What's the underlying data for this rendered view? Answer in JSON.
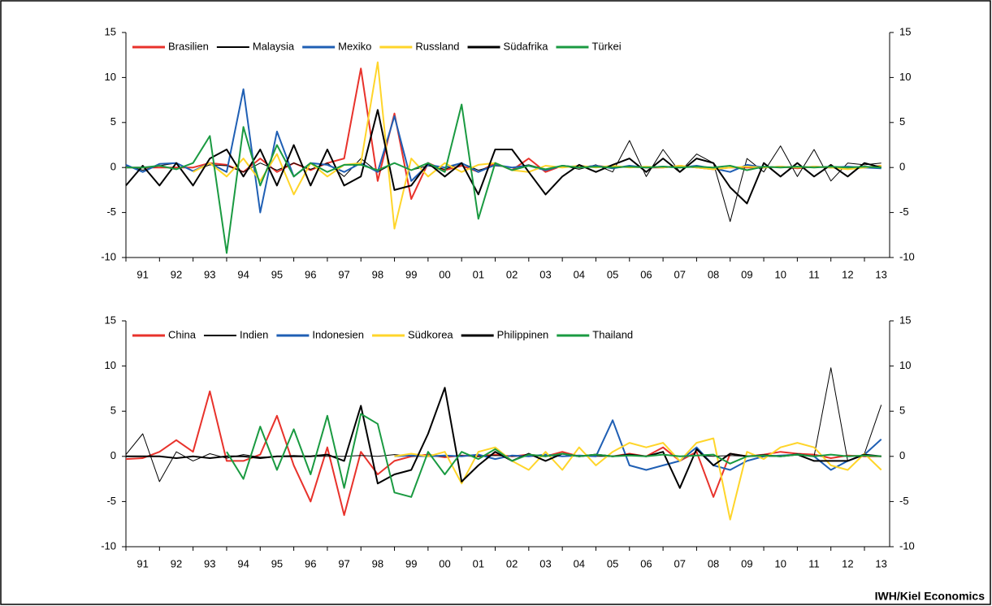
{
  "source": "IWH/Kiel Economics",
  "chart_data": [
    {
      "type": "line",
      "x": [
        1991.0,
        1991.5,
        1992.0,
        1992.5,
        1993.0,
        1993.5,
        1994.0,
        1994.5,
        1995.0,
        1995.5,
        1996.0,
        1996.5,
        1997.0,
        1997.5,
        1998.0,
        1998.5,
        1999.0,
        1999.5,
        2000.0,
        2000.5,
        2001.0,
        2001.5,
        2002.0,
        2002.5,
        2003.0,
        2003.5,
        2004.0,
        2004.5,
        2005.0,
        2005.5,
        2006.0,
        2006.5,
        2007.0,
        2007.5,
        2008.0,
        2008.5,
        2009.0,
        2009.5,
        2010.0,
        2010.5,
        2011.0,
        2011.5,
        2012.0,
        2012.5,
        2013.0,
        2013.5
      ],
      "xlim": [
        1991,
        2013.75
      ],
      "xticks": [
        {
          "value": 1991,
          "label": "91"
        },
        {
          "value": 1992,
          "label": "92"
        },
        {
          "value": 1993,
          "label": "93"
        },
        {
          "value": 1994,
          "label": "94"
        },
        {
          "value": 1995,
          "label": "95"
        },
        {
          "value": 1996,
          "label": "96"
        },
        {
          "value": 1997,
          "label": "97"
        },
        {
          "value": 1998,
          "label": "98"
        },
        {
          "value": 1999,
          "label": "99"
        },
        {
          "value": 2000,
          "label": "00"
        },
        {
          "value": 2001,
          "label": "01"
        },
        {
          "value": 2002,
          "label": "02"
        },
        {
          "value": 2003,
          "label": "03"
        },
        {
          "value": 2004,
          "label": "04"
        },
        {
          "value": 2005,
          "label": "05"
        },
        {
          "value": 2006,
          "label": "06"
        },
        {
          "value": 2007,
          "label": "07"
        },
        {
          "value": 2008,
          "label": "08"
        },
        {
          "value": 2009,
          "label": "09"
        },
        {
          "value": 2010,
          "label": "10"
        },
        {
          "value": 2011,
          "label": "11"
        },
        {
          "value": 2012,
          "label": "12"
        },
        {
          "value": 2013,
          "label": "13"
        }
      ],
      "ylim": [
        -10,
        15
      ],
      "yticks": [
        -10,
        -5,
        0,
        5,
        10,
        15
      ],
      "y2lim": [
        -10,
        15
      ],
      "y2ticks": [
        -10,
        -5,
        0,
        5,
        10,
        15
      ],
      "series": [
        {
          "name": "Brasilien",
          "color": "#e8322b",
          "width": 2,
          "values": [
            0,
            0,
            0,
            0,
            0,
            0.5,
            0.3,
            -0.5,
            1,
            -0.5,
            0.5,
            -0.3,
            0.5,
            1,
            11,
            -1.5,
            6,
            -3.5,
            0.5,
            -0.3,
            0.2,
            -0.5,
            0.5,
            -0.3,
            1,
            -0.5,
            0.2,
            0,
            0.2,
            0,
            0.1,
            0,
            0,
            0.2,
            0,
            -0.2,
            0,
            0,
            0,
            0.1,
            -0.1,
            0.1,
            0,
            0,
            0,
            0.2
          ]
        },
        {
          "name": "Malaysia",
          "color": "#000000",
          "width": 1,
          "values": [
            0.2,
            -0.3,
            0.2,
            0.5,
            -0.4,
            0.3,
            0.2,
            -0.5,
            0.5,
            -0.3,
            0.5,
            -0.2,
            0.5,
            -1,
            1,
            -0.5,
            0.5,
            -0.3,
            0.2,
            -0.2,
            0.5,
            -0.3,
            0.2,
            0,
            0.3,
            -0.2,
            0.2,
            -0.2,
            0.3,
            -0.5,
            3,
            -1,
            2,
            -0.5,
            1.5,
            0.5,
            -6,
            1,
            -0.5,
            2.4,
            -1,
            2,
            -1.5,
            0.5,
            0.3,
            0.5
          ]
        },
        {
          "name": "Mexiko",
          "color": "#1f5fb4",
          "width": 2,
          "values": [
            0.3,
            -0.5,
            0.4,
            0.5,
            -0.4,
            0.5,
            -0.5,
            8.7,
            -5,
            4,
            -1,
            0.5,
            0.3,
            -0.5,
            0.5,
            -0.5,
            5.7,
            -1.5,
            0.3,
            0,
            0.5,
            -0.5,
            0.3,
            0,
            0.2,
            -0.3,
            0.2,
            0,
            0.2,
            -0.1,
            0.2,
            0,
            0.1,
            0,
            0.2,
            -0.1,
            -0.5,
            0.3,
            0,
            0.1,
            0,
            0.1,
            0,
            0.1,
            0,
            -0.1
          ]
        },
        {
          "name": "Russland",
          "color": "#ffd52a",
          "width": 2,
          "values": [
            null,
            null,
            null,
            null,
            -0.5,
            0.5,
            -1,
            1,
            -1.5,
            1.5,
            -3,
            0.5,
            -1,
            0.3,
            0.5,
            11.7,
            -6.8,
            1,
            -1,
            0.5,
            -0.5,
            0.3,
            0.5,
            -0.3,
            -0.5,
            0.2,
            0,
            0.2,
            0,
            0.2,
            0,
            0.1,
            0,
            0.2,
            0,
            -0.2,
            0,
            0.1,
            0,
            0.1,
            0,
            0.1,
            0,
            -0.2,
            0,
            0.2
          ]
        },
        {
          "name": "Südafrika",
          "color": "#000000",
          "width": 2,
          "values": [
            -2,
            0.2,
            -2,
            0.5,
            -2,
            1,
            2,
            -1,
            2,
            -2,
            2.5,
            -2,
            2,
            -2,
            -1,
            6.4,
            -2.5,
            -2,
            0.5,
            -1,
            0.5,
            -3,
            2,
            2,
            -0.5,
            -3,
            -1,
            0.3,
            -0.5,
            0.3,
            1,
            -0.5,
            1,
            -0.5,
            1,
            0.5,
            -2.2,
            -4,
            0.5,
            -1,
            0.5,
            -1,
            0.3,
            -1,
            0.5,
            0
          ]
        },
        {
          "name": "Türkei",
          "color": "#1a9a41",
          "width": 2,
          "values": [
            0,
            0,
            0.2,
            -0.2,
            0.5,
            3.5,
            -9.5,
            4.5,
            -2,
            2.5,
            -1,
            0.5,
            -0.5,
            0.3,
            0.3,
            -0.3,
            0.5,
            -0.3,
            0.5,
            -0.5,
            7,
            -5.7,
            0.5,
            -0.3,
            0.2,
            -0.2,
            0.2,
            0,
            0.1,
            0,
            0.1,
            0,
            0.1,
            0,
            0.1,
            0,
            0.2,
            -0.3,
            0.1,
            0,
            0.1,
            0,
            0.1,
            0,
            0.1,
            0
          ]
        }
      ]
    },
    {
      "type": "line",
      "x": [
        1991.0,
        1991.5,
        1992.0,
        1992.5,
        1993.0,
        1993.5,
        1994.0,
        1994.5,
        1995.0,
        1995.5,
        1996.0,
        1996.5,
        1997.0,
        1997.5,
        1998.0,
        1998.5,
        1999.0,
        1999.5,
        2000.0,
        2000.5,
        2001.0,
        2001.5,
        2002.0,
        2002.5,
        2003.0,
        2003.5,
        2004.0,
        2004.5,
        2005.0,
        2005.5,
        2006.0,
        2006.5,
        2007.0,
        2007.5,
        2008.0,
        2008.5,
        2009.0,
        2009.5,
        2010.0,
        2010.5,
        2011.0,
        2011.5,
        2012.0,
        2012.5,
        2013.0,
        2013.5
      ],
      "xlim": [
        1991,
        2013.75
      ],
      "xticks": [
        {
          "value": 1991,
          "label": "91"
        },
        {
          "value": 1992,
          "label": "92"
        },
        {
          "value": 1993,
          "label": "93"
        },
        {
          "value": 1994,
          "label": "94"
        },
        {
          "value": 1995,
          "label": "95"
        },
        {
          "value": 1996,
          "label": "96"
        },
        {
          "value": 1997,
          "label": "97"
        },
        {
          "value": 1998,
          "label": "98"
        },
        {
          "value": 1999,
          "label": "99"
        },
        {
          "value": 2000,
          "label": "00"
        },
        {
          "value": 2001,
          "label": "01"
        },
        {
          "value": 2002,
          "label": "02"
        },
        {
          "value": 2003,
          "label": "03"
        },
        {
          "value": 2004,
          "label": "04"
        },
        {
          "value": 2005,
          "label": "05"
        },
        {
          "value": 2006,
          "label": "06"
        },
        {
          "value": 2007,
          "label": "07"
        },
        {
          "value": 2008,
          "label": "08"
        },
        {
          "value": 2009,
          "label": "09"
        },
        {
          "value": 2010,
          "label": "10"
        },
        {
          "value": 2011,
          "label": "11"
        },
        {
          "value": 2012,
          "label": "12"
        },
        {
          "value": 2013,
          "label": "13"
        }
      ],
      "ylim": [
        -10,
        15
      ],
      "yticks": [
        -10,
        -5,
        0,
        5,
        10,
        15
      ],
      "y2lim": [
        -10,
        15
      ],
      "y2ticks": [
        -10,
        -5,
        0,
        5,
        10,
        15
      ],
      "series": [
        {
          "name": "China",
          "color": "#e8322b",
          "width": 2,
          "values": [
            -0.3,
            -0.2,
            0.5,
            1.8,
            0.5,
            7.2,
            -0.5,
            -0.5,
            0.2,
            4.5,
            -1,
            -5,
            1,
            -6.5,
            0.5,
            -2,
            -0.5,
            0,
            0.2,
            -0.1,
            0.1,
            0,
            0.2,
            0,
            0.2,
            0,
            0.5,
            0,
            0.2,
            0,
            0.3,
            0,
            1,
            -0.5,
            0.5,
            -4.5,
            0.3,
            0,
            0.2,
            0.5,
            0.3,
            0.2,
            -0.2,
            0.1,
            0,
            0
          ]
        },
        {
          "name": "Indien",
          "color": "#000000",
          "width": 1,
          "values": [
            0.2,
            2.5,
            -2.8,
            0.5,
            -0.5,
            0.3,
            -0.2,
            0.2,
            -0.1,
            0,
            0.1,
            0,
            0,
            0,
            0.1,
            0,
            0.2,
            0,
            0,
            0,
            0.1,
            0,
            0.1,
            0,
            0,
            0.1,
            0,
            0.1,
            0,
            0,
            0.1,
            0,
            0.2,
            0,
            0.1,
            0,
            0.1,
            0,
            0.2,
            0,
            0.3,
            0,
            9.8,
            -0.5,
            0.3,
            5.7
          ]
        },
        {
          "name": "Indonesien",
          "color": "#1f5fb4",
          "width": 2,
          "values": [
            null,
            null,
            null,
            null,
            null,
            null,
            null,
            null,
            null,
            null,
            null,
            null,
            null,
            null,
            null,
            null,
            0,
            0.1,
            0,
            0.1,
            0,
            0.2,
            -0.3,
            0.1,
            0,
            0.2,
            0,
            0.1,
            0,
            4,
            -1,
            -1.5,
            -1,
            -0.5,
            1,
            -1,
            -1.5,
            -0.5,
            0,
            0.1,
            0.2,
            0,
            -1.5,
            -0.5,
            0.2,
            1.9
          ]
        },
        {
          "name": "Südkorea",
          "color": "#ffd52a",
          "width": 2,
          "values": [
            null,
            null,
            null,
            null,
            null,
            null,
            null,
            null,
            null,
            null,
            null,
            null,
            null,
            null,
            null,
            null,
            0,
            0.3,
            0,
            0.5,
            -3,
            0.5,
            1,
            -0.5,
            -1.5,
            0.5,
            -1.5,
            1,
            -1,
            0.5,
            1.5,
            1,
            1.5,
            -0.5,
            1.5,
            2,
            -7,
            0.5,
            -0.3,
            1,
            1.5,
            1,
            -1,
            -1.5,
            0.3,
            -1.5
          ]
        },
        {
          "name": "Philippinen",
          "color": "#000000",
          "width": 2,
          "values": [
            0,
            0,
            0,
            -0.2,
            0,
            -0.2,
            0,
            0,
            -0.2,
            0,
            0,
            0,
            0.2,
            -0.5,
            5.6,
            -3,
            -2,
            -1.5,
            2.5,
            7.6,
            -2.8,
            -1,
            0.5,
            -0.5,
            0.3,
            -0.5,
            0.3,
            0,
            0.2,
            0,
            0.2,
            0,
            0.5,
            -3.5,
            0.8,
            -1,
            0.3,
            0,
            0.1,
            0,
            0.2,
            -0.5,
            -0.5,
            -0.5,
            0.2,
            0
          ]
        },
        {
          "name": "Thailand",
          "color": "#1a9a41",
          "width": 2,
          "values": [
            null,
            null,
            null,
            null,
            null,
            null,
            0.5,
            -2.5,
            3.3,
            -1.5,
            3,
            -2,
            4.5,
            -3.5,
            4.7,
            3.6,
            -4,
            -4.5,
            0.5,
            -2,
            0.5,
            -0.3,
            0.8,
            -0.5,
            0.2,
            0,
            0.3,
            0,
            0.2,
            0,
            0.1,
            0,
            0.2,
            0,
            0.1,
            0.2,
            -0.8,
            0,
            0.1,
            0,
            0.2,
            0,
            0.2,
            0,
            0.1,
            0
          ]
        }
      ]
    }
  ]
}
